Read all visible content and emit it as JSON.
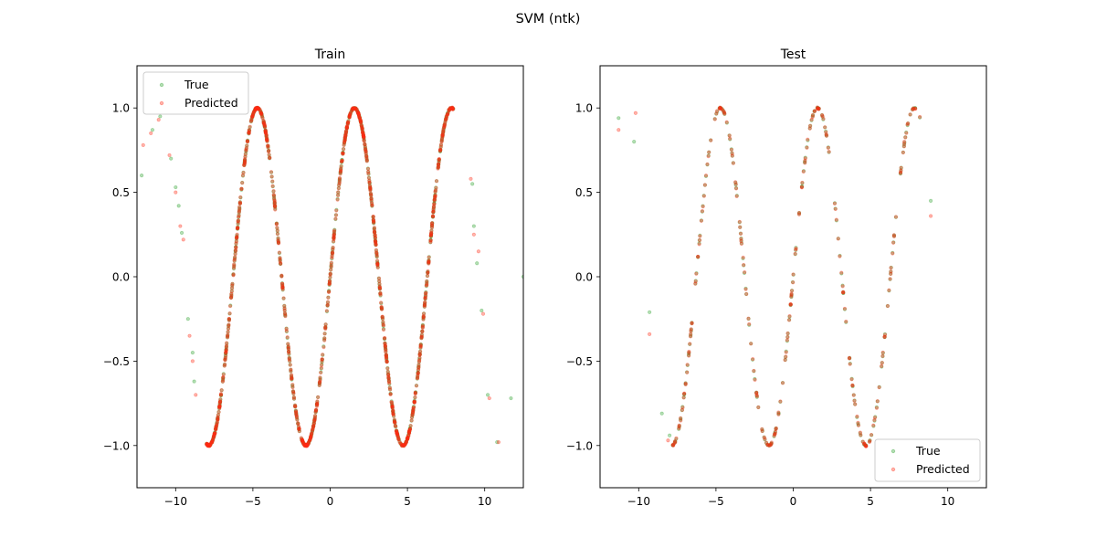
{
  "figure": {
    "suptitle": "SVM (ntk)",
    "colors": {
      "true": "#2ca02c",
      "predicted": "#ff2a14"
    }
  },
  "chart_data": [
    {
      "type": "scatter",
      "title": "Train",
      "xlabel": "",
      "ylabel": "",
      "xlim": [
        -12.5,
        12.5
      ],
      "ylim": [
        -1.25,
        1.25
      ],
      "xticks": [
        -10,
        -5,
        0,
        5,
        10
      ],
      "yticks": [
        -1.0,
        -0.5,
        0.0,
        0.5,
        1.0
      ],
      "xtick_labels": [
        "−10",
        "−5",
        "0",
        "5",
        "10"
      ],
      "ytick_labels": [
        "−1.0",
        "−0.5",
        "0.0",
        "0.5",
        "1.0"
      ],
      "legend": {
        "location": "upper left",
        "entries": [
          "True",
          "Predicted"
        ]
      },
      "grid": false,
      "relationship": "y = sin(x)",
      "x_range_dense": [
        -8.0,
        8.0
      ],
      "point_count": 1000,
      "outliers": {
        "true": [
          [
            -12.2,
            0.6
          ],
          [
            -11.5,
            0.87
          ],
          [
            -11.0,
            0.95
          ],
          [
            -10.3,
            0.7
          ],
          [
            -10.0,
            0.53
          ],
          [
            -9.8,
            0.42
          ],
          [
            -9.6,
            0.26
          ],
          [
            -9.2,
            -0.25
          ],
          [
            -8.9,
            -0.45
          ],
          [
            -8.8,
            -0.62
          ],
          [
            9.2,
            0.55
          ],
          [
            9.3,
            0.3
          ],
          [
            9.5,
            0.08
          ],
          [
            9.8,
            -0.2
          ],
          [
            10.2,
            -0.7
          ],
          [
            10.8,
            -0.98
          ],
          [
            11.7,
            -0.72
          ],
          [
            12.5,
            0.0
          ]
        ],
        "predicted": [
          [
            -12.1,
            0.78
          ],
          [
            -11.6,
            0.85
          ],
          [
            -11.1,
            0.93
          ],
          [
            -10.4,
            0.72
          ],
          [
            -10.0,
            0.5
          ],
          [
            -9.7,
            0.3
          ],
          [
            -9.5,
            0.22
          ],
          [
            -9.1,
            -0.35
          ],
          [
            -8.9,
            -0.5
          ],
          [
            -8.7,
            -0.7
          ],
          [
            9.1,
            0.58
          ],
          [
            9.3,
            0.25
          ],
          [
            9.6,
            0.15
          ],
          [
            9.9,
            -0.22
          ],
          [
            10.3,
            -0.72
          ],
          [
            10.9,
            -0.98
          ]
        ]
      }
    },
    {
      "type": "scatter",
      "title": "Test",
      "xlabel": "",
      "ylabel": "",
      "xlim": [
        -12.5,
        12.5
      ],
      "ylim": [
        -1.25,
        1.25
      ],
      "xticks": [
        -10,
        -5,
        0,
        5,
        10
      ],
      "yticks": [
        -1.0,
        -0.5,
        0.0,
        0.5,
        1.0
      ],
      "xtick_labels": [
        "−10",
        "−5",
        "0",
        "5",
        "10"
      ],
      "ytick_labels": [
        "−1.0",
        "−0.5",
        "0.0",
        "0.5",
        "1.0"
      ],
      "legend": {
        "location": "lower right",
        "entries": [
          "True",
          "Predicted"
        ]
      },
      "grid": false,
      "relationship": "y = sin(x)",
      "x_range_dense": [
        -7.8,
        8.3
      ],
      "point_count": 250,
      "outliers": {
        "true": [
          [
            -11.3,
            0.94
          ],
          [
            -10.3,
            0.8
          ],
          [
            -9.3,
            -0.21
          ],
          [
            -8.5,
            -0.81
          ],
          [
            -8.0,
            -0.94
          ],
          [
            8.9,
            0.45
          ]
        ],
        "predicted": [
          [
            -11.3,
            0.87
          ],
          [
            -10.2,
            0.97
          ],
          [
            -9.3,
            -0.34
          ],
          [
            -8.1,
            -0.97
          ],
          [
            8.9,
            0.36
          ]
        ]
      }
    }
  ]
}
